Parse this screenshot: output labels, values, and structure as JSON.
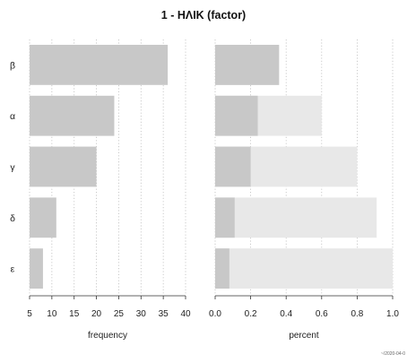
{
  "chart_data": {
    "title": "1 - ΗΛΙΚ (factor)",
    "categories": [
      "β",
      "α",
      "γ",
      "δ",
      "ε"
    ],
    "footer": "~/2020-04-0",
    "panels": [
      {
        "type": "bar",
        "orientation": "horizontal",
        "xlabel": "frequency",
        "xlim": [
          5,
          40
        ],
        "ticks": [
          "5",
          "10",
          "15",
          "20",
          "25",
          "30",
          "35",
          "40"
        ],
        "grid": "vertical-dotted",
        "values": [
          36,
          24,
          20,
          11,
          8
        ],
        "bar_color": "#c8c8c8"
      },
      {
        "type": "bar",
        "orientation": "horizontal",
        "subtype": "percent-with-cumulative",
        "xlabel": "percent",
        "xlim": [
          0,
          1
        ],
        "ticks": [
          "0.0",
          "0.2",
          "0.4",
          "0.6",
          "0.8",
          "1.0"
        ],
        "grid": "vertical-dotted",
        "series": [
          {
            "values": [
              0.36,
              0.24,
              0.2,
              0.11,
              0.08
            ],
            "color": "#c8c8c8"
          },
          {
            "values": [
              0.36,
              0.6,
              0.8,
              0.91,
              1.0
            ],
            "color": "#e8e8e8"
          }
        ]
      }
    ]
  }
}
